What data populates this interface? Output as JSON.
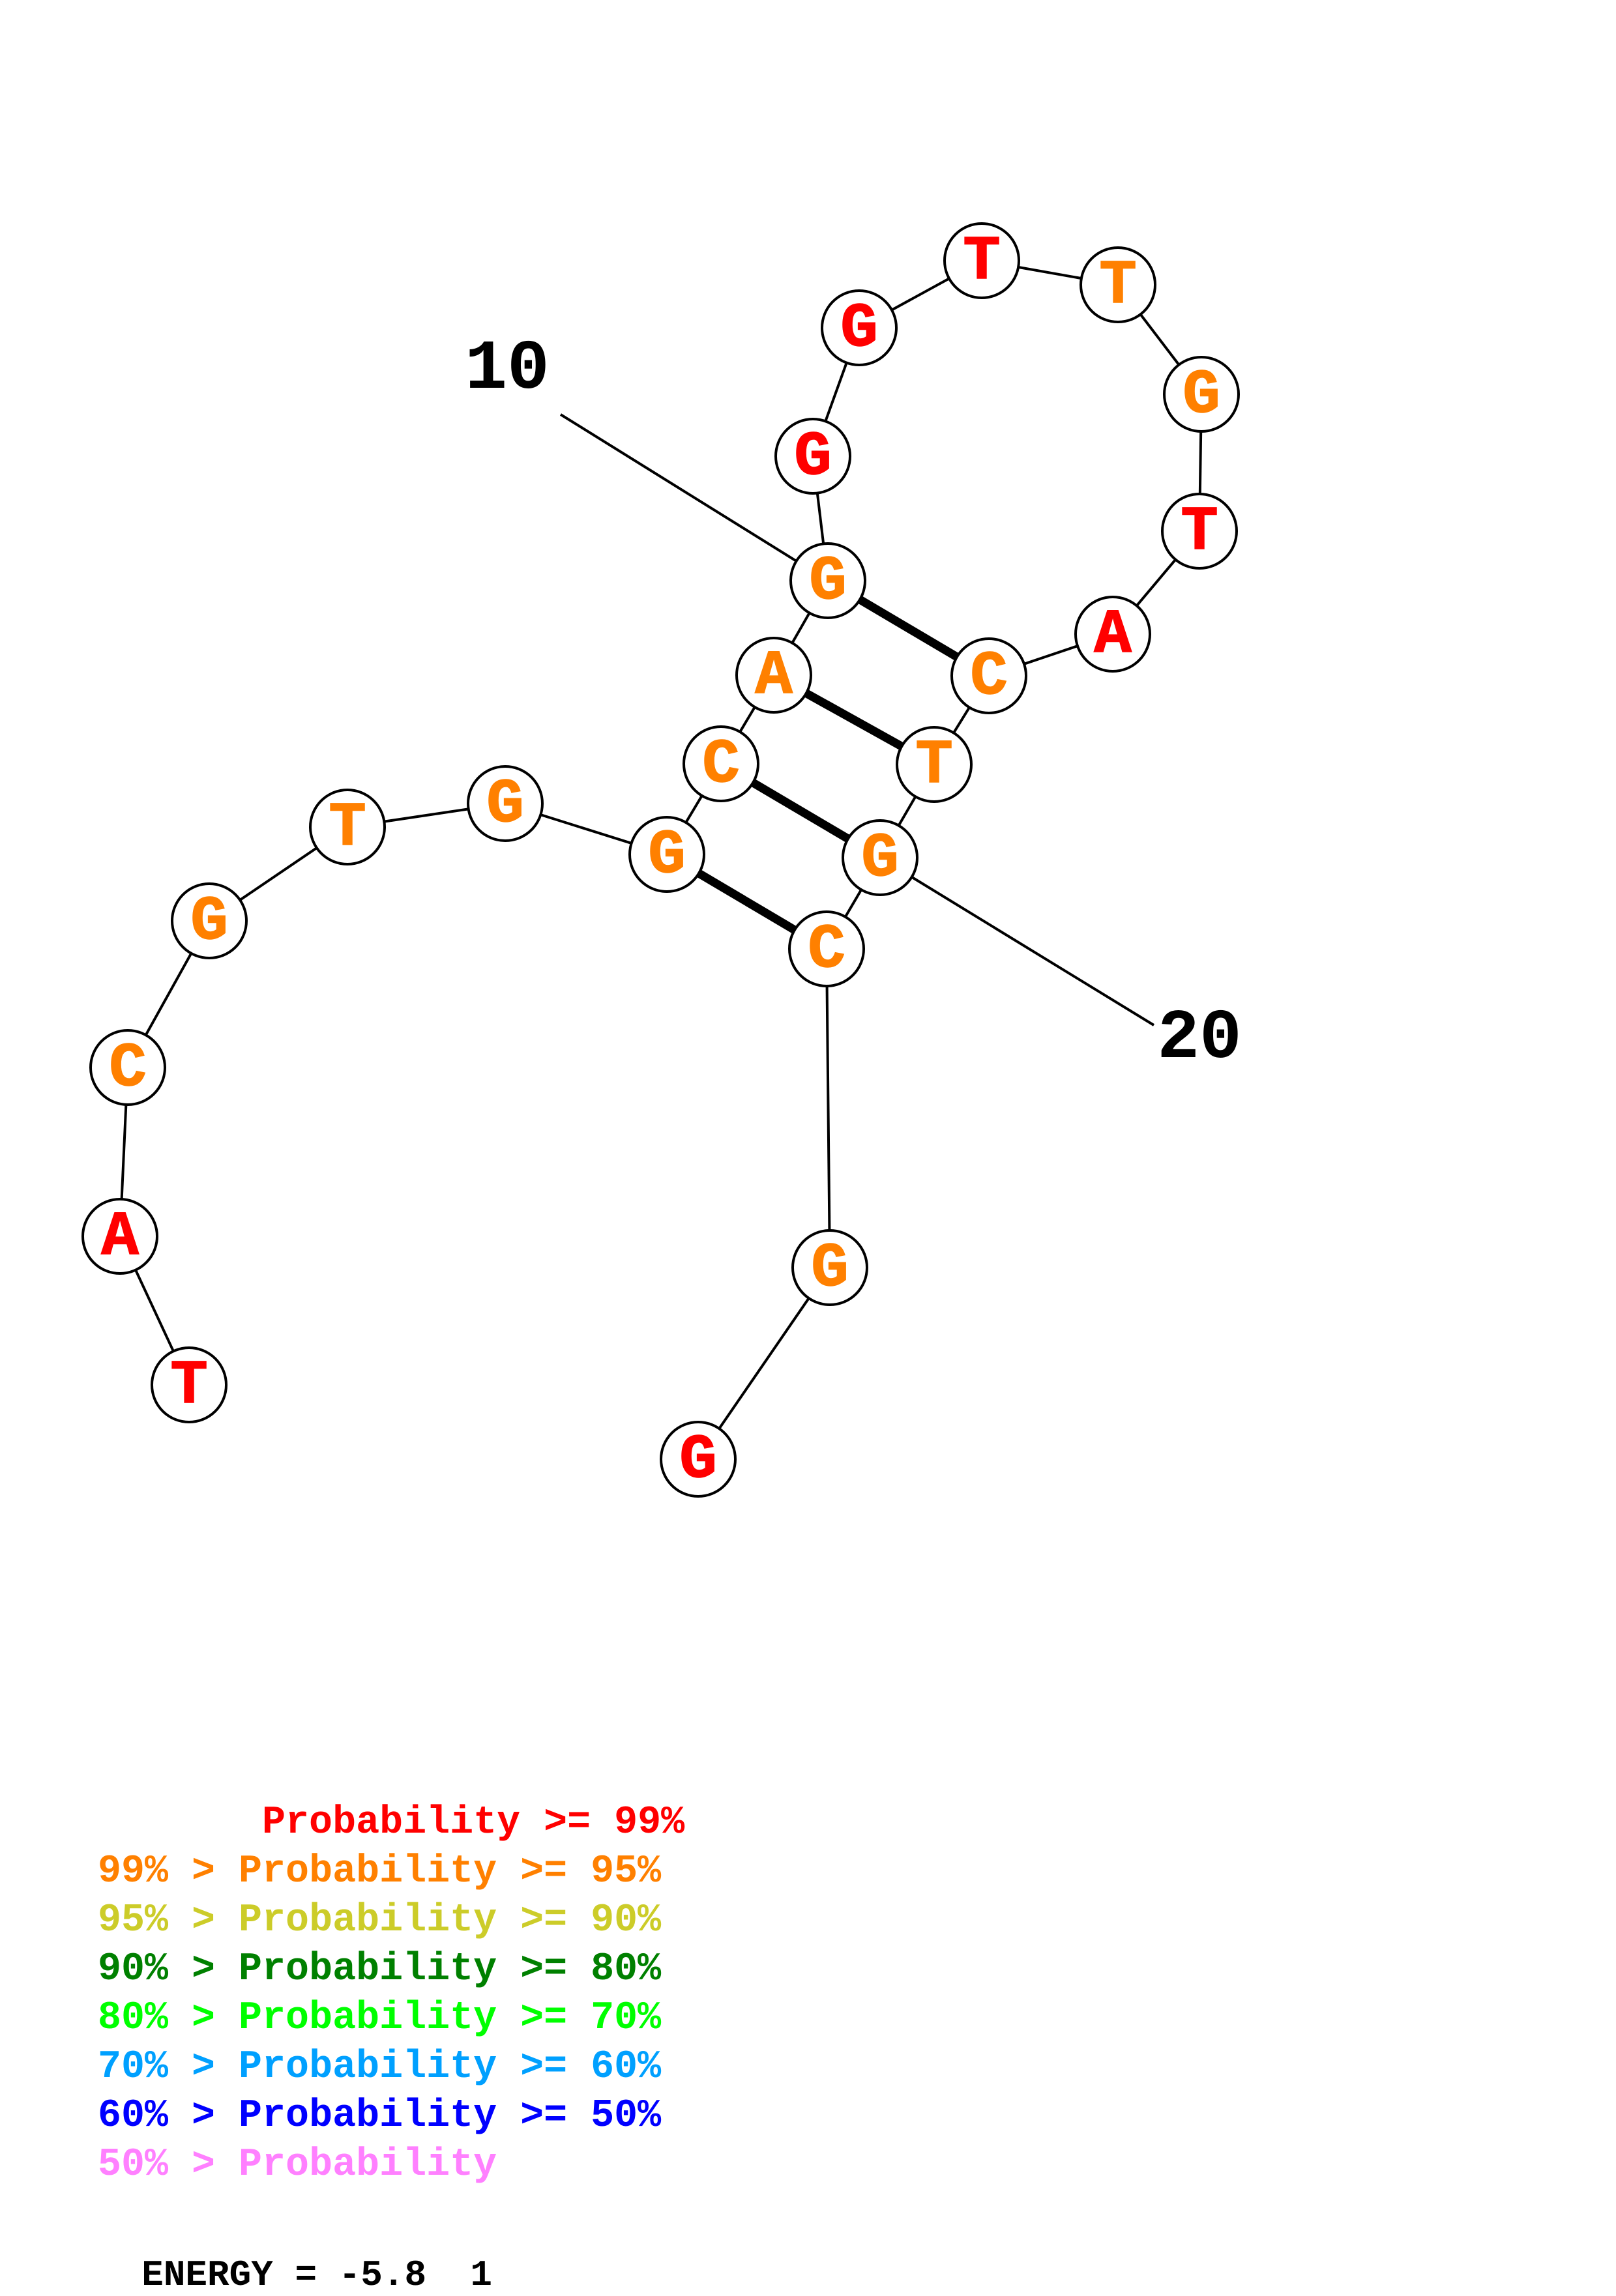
{
  "colors": {
    "p99": "#ff0000",
    "p95": "#ff8000",
    "p90": "#cccc29",
    "p80": "#008000",
    "p70": "#00ff00",
    "p60": "#00a0ff",
    "p50": "#0000ff",
    "plow": "#ff80ff",
    "stroke": "#000000"
  },
  "structure": {
    "nucleotides": [
      {
        "index": 1,
        "base": "T",
        "prob_class": "p99"
      },
      {
        "index": 2,
        "base": "A",
        "prob_class": "p99"
      },
      {
        "index": 3,
        "base": "C",
        "prob_class": "p95"
      },
      {
        "index": 4,
        "base": "G",
        "prob_class": "p95"
      },
      {
        "index": 5,
        "base": "T",
        "prob_class": "p95"
      },
      {
        "index": 6,
        "base": "G",
        "prob_class": "p95"
      },
      {
        "index": 7,
        "base": "G",
        "prob_class": "p95"
      },
      {
        "index": 8,
        "base": "C",
        "prob_class": "p95"
      },
      {
        "index": 9,
        "base": "A",
        "prob_class": "p95"
      },
      {
        "index": 10,
        "base": "G",
        "prob_class": "p95"
      },
      {
        "index": 11,
        "base": "G",
        "prob_class": "p99"
      },
      {
        "index": 12,
        "base": "G",
        "prob_class": "p99"
      },
      {
        "index": 13,
        "base": "T",
        "prob_class": "p99"
      },
      {
        "index": 14,
        "base": "T",
        "prob_class": "p95"
      },
      {
        "index": 15,
        "base": "G",
        "prob_class": "p95"
      },
      {
        "index": 16,
        "base": "T",
        "prob_class": "p99"
      },
      {
        "index": 17,
        "base": "A",
        "prob_class": "p99"
      },
      {
        "index": 18,
        "base": "C",
        "prob_class": "p95"
      },
      {
        "index": 19,
        "base": "T",
        "prob_class": "p95"
      },
      {
        "index": 20,
        "base": "G",
        "prob_class": "p95"
      },
      {
        "index": 21,
        "base": "C",
        "prob_class": "p95"
      },
      {
        "index": 22,
        "base": "G",
        "prob_class": "p95"
      },
      {
        "index": 23,
        "base": "G",
        "prob_class": "p99"
      }
    ],
    "pairs": [
      [
        7,
        21
      ],
      [
        8,
        20
      ],
      [
        9,
        19
      ],
      [
        10,
        18
      ]
    ],
    "index_labels": [
      {
        "index": 10,
        "text": "10"
      },
      {
        "index": 20,
        "text": "20"
      }
    ]
  },
  "legend": [
    {
      "prefix": "       ",
      "text": "Probability >= 99%",
      "color_key": "p99"
    },
    {
      "prefix": "99% > ",
      "text": "Probability >= 95%",
      "color_key": "p95"
    },
    {
      "prefix": "95% > ",
      "text": "Probability >= 90%",
      "color_key": "p90"
    },
    {
      "prefix": "90% > ",
      "text": "Probability >= 80%",
      "color_key": "p80"
    },
    {
      "prefix": "80% > ",
      "text": "Probability >= 70%",
      "color_key": "p70"
    },
    {
      "prefix": "70% > ",
      "text": "Probability >= 60%",
      "color_key": "p60"
    },
    {
      "prefix": "60% > ",
      "text": "Probability >= 50%",
      "color_key": "p50"
    },
    {
      "prefix": "50% > ",
      "text": "Probability",
      "color_key": "plow"
    }
  ],
  "energy": {
    "label": "ENERGY = -5.8",
    "structure_number": "1"
  }
}
